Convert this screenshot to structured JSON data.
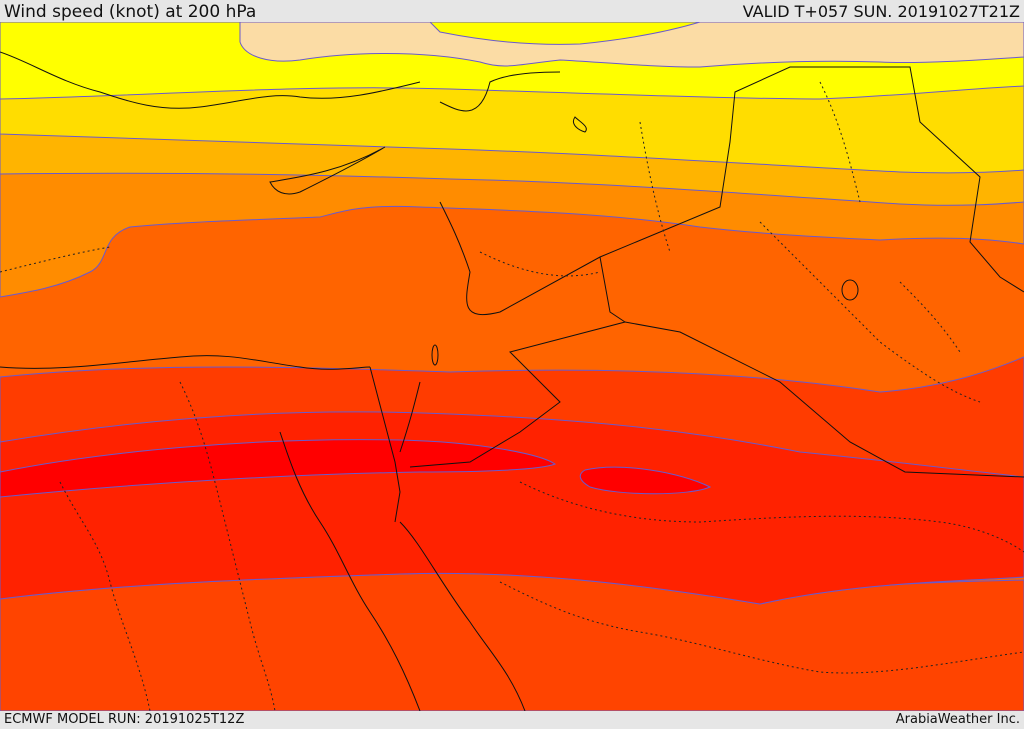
{
  "header": {
    "title": "Wind speed (knot) at 200 hPa",
    "valid_time": "VALID T+057 SUN. 20191027T21Z"
  },
  "footer": {
    "model_run": "ECMWF MODEL RUN: 20191025T12Z",
    "provider": "ArabiaWeather Inc."
  },
  "map": {
    "field": "wind speed",
    "level_hpa": 200,
    "contour_line_color": "#6a5acd",
    "boundary_color": "#111111",
    "band_colors": [
      "#fbdca5",
      "#ffff00",
      "#ffdd00",
      "#ffb400",
      "#ff8c00",
      "#ff6400",
      "#ff3c00",
      "#ff2000",
      "#ff0000"
    ]
  }
}
